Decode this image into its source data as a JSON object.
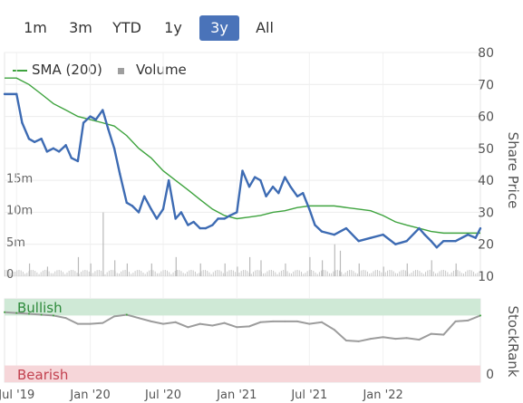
{
  "range_selector": {
    "buttons": [
      {
        "label": "1m",
        "active": false
      },
      {
        "label": "3m",
        "active": false
      },
      {
        "label": "YTD",
        "active": false
      },
      {
        "label": "1y",
        "active": false
      },
      {
        "label": "3y",
        "active": true
      },
      {
        "label": "All",
        "active": false
      }
    ],
    "active_color": "#4a73b9"
  },
  "legend": {
    "sma_label": "SMA (200)",
    "volume_label": "Volume",
    "sma_color": "#3ea33e",
    "volume_color": "#9e9e9e"
  },
  "chart_data": [
    {
      "type": "line",
      "x_tick_labels": [
        "Jul '19",
        "Jan '20",
        "Jul '20",
        "Jan '21",
        "Jul '21",
        "Jan '22"
      ],
      "x_range": [
        "2019-06",
        "2022-09"
      ],
      "ylabel": "Share Price",
      "ylim": [
        10,
        80
      ],
      "y_tick_labels": [
        "10",
        "20",
        "30",
        "40",
        "50",
        "60",
        "70",
        "80"
      ],
      "volume_tick_labels": [
        "0",
        "5m",
        "10m",
        "15m"
      ],
      "volume_ylim": [
        0,
        15
      ],
      "grid": true,
      "series": [
        {
          "name": "",
          "color": "#3d6bb3",
          "x": [
            "2019-06-01",
            "2019-07-01",
            "2019-07-15",
            "2019-08-01",
            "2019-08-15",
            "2019-09-01",
            "2019-09-15",
            "2019-10-01",
            "2019-10-15",
            "2019-11-01",
            "2019-11-15",
            "2019-12-01",
            "2019-12-15",
            "2020-01-01",
            "2020-01-15",
            "2020-02-01",
            "2020-02-15",
            "2020-03-01",
            "2020-03-15",
            "2020-04-01",
            "2020-04-15",
            "2020-05-01",
            "2020-05-15",
            "2020-06-01",
            "2020-06-15",
            "2020-07-01",
            "2020-07-15",
            "2020-08-01",
            "2020-08-15",
            "2020-09-01",
            "2020-09-15",
            "2020-10-01",
            "2020-10-15",
            "2020-11-01",
            "2020-11-15",
            "2020-12-01",
            "2020-12-15",
            "2021-01-01",
            "2021-01-15",
            "2021-02-01",
            "2021-02-15",
            "2021-03-01",
            "2021-03-15",
            "2021-04-01",
            "2021-04-15",
            "2021-05-01",
            "2021-05-15",
            "2021-06-01",
            "2021-06-15",
            "2021-07-01",
            "2021-07-15",
            "2021-08-01",
            "2021-09-01",
            "2021-10-01",
            "2021-11-01",
            "2021-12-01",
            "2022-01-01",
            "2022-02-01",
            "2022-03-01",
            "2022-04-01",
            "2022-04-15",
            "2022-05-01",
            "2022-05-15",
            "2022-06-01",
            "2022-07-01",
            "2022-08-01",
            "2022-08-20",
            "2022-09-01"
          ],
          "values": [
            67,
            67,
            58,
            53,
            52,
            53,
            49,
            50,
            49,
            51,
            47,
            46,
            58,
            60,
            59,
            62,
            56,
            50,
            42,
            33,
            32,
            30,
            35,
            31,
            28,
            31,
            40,
            28,
            30,
            26,
            27,
            25,
            25,
            26,
            28,
            28,
            29,
            30,
            43,
            38,
            41,
            40,
            35,
            38,
            36,
            41,
            38,
            35,
            36,
            31,
            26,
            24,
            23,
            25,
            21,
            22,
            23,
            20,
            21,
            25,
            23,
            21,
            19,
            21,
            21,
            23,
            22,
            25
          ]
        },
        {
          "name": "SMA (200)",
          "color": "#3ea33e",
          "x": [
            "2019-06-01",
            "2019-07-01",
            "2019-08-01",
            "2019-09-01",
            "2019-10-01",
            "2019-11-01",
            "2019-12-01",
            "2020-01-01",
            "2020-02-01",
            "2020-03-01",
            "2020-04-01",
            "2020-05-01",
            "2020-06-01",
            "2020-07-01",
            "2020-08-01",
            "2020-09-01",
            "2020-10-01",
            "2020-11-01",
            "2020-12-01",
            "2021-01-01",
            "2021-02-01",
            "2021-03-01",
            "2021-04-01",
            "2021-05-01",
            "2021-06-01",
            "2021-07-01",
            "2021-08-01",
            "2021-09-01",
            "2021-10-01",
            "2021-11-01",
            "2021-12-01",
            "2022-01-01",
            "2022-02-01",
            "2022-03-01",
            "2022-04-01",
            "2022-05-01",
            "2022-06-01",
            "2022-07-01",
            "2022-08-01",
            "2022-09-01"
          ],
          "values": [
            72,
            72,
            70,
            67,
            64,
            62,
            60,
            59,
            58,
            57,
            54,
            50,
            47,
            43,
            40,
            37,
            34,
            31,
            29,
            28,
            28.5,
            29,
            30,
            30.5,
            31.5,
            32,
            32,
            32,
            31.5,
            31,
            30.5,
            29,
            27,
            26,
            25,
            24,
            23.5,
            23.5,
            23.5,
            23.5
          ]
        }
      ],
      "volume_peaks_m": [
        {
          "x": "2019-08-01",
          "v": 2
        },
        {
          "x": "2019-09-15",
          "v": 1.5
        },
        {
          "x": "2019-12-01",
          "v": 3
        },
        {
          "x": "2020-01-01",
          "v": 2
        },
        {
          "x": "2020-02-01",
          "v": 10
        },
        {
          "x": "2020-03-01",
          "v": 2.5
        },
        {
          "x": "2020-04-01",
          "v": 2
        },
        {
          "x": "2020-06-01",
          "v": 2
        },
        {
          "x": "2020-08-01",
          "v": 3
        },
        {
          "x": "2020-10-01",
          "v": 2
        },
        {
          "x": "2020-12-01",
          "v": 2
        },
        {
          "x": "2021-01-01",
          "v": 1.5
        },
        {
          "x": "2021-02-01",
          "v": 3
        },
        {
          "x": "2021-03-01",
          "v": 2.5
        },
        {
          "x": "2021-05-01",
          "v": 2
        },
        {
          "x": "2021-07-01",
          "v": 3
        },
        {
          "x": "2021-08-01",
          "v": 2.5
        },
        {
          "x": "2021-09-01",
          "v": 5
        },
        {
          "x": "2021-09-15",
          "v": 4
        },
        {
          "x": "2021-11-01",
          "v": 2
        },
        {
          "x": "2022-01-01",
          "v": 1.5
        },
        {
          "x": "2022-03-01",
          "v": 2
        },
        {
          "x": "2022-05-01",
          "v": 2.5
        },
        {
          "x": "2022-07-01",
          "v": 2
        }
      ]
    },
    {
      "type": "line",
      "ylabel": "StockRank",
      "ylim": [
        0,
        100
      ],
      "y_tick_labels": [
        "0"
      ],
      "bands": [
        {
          "label": "Bullish",
          "color": "#cfe9d6",
          "range": [
            80,
            100
          ]
        },
        {
          "label": "Bearish",
          "color": "#f6d6d9",
          "range": [
            0,
            20
          ]
        }
      ],
      "series": [
        {
          "name": "",
          "color": "#9c9c9c",
          "x": [
            "2019-06-01",
            "2019-07-01",
            "2019-08-01",
            "2019-09-01",
            "2019-10-01",
            "2019-11-01",
            "2019-12-01",
            "2020-01-01",
            "2020-02-01",
            "2020-03-01",
            "2020-04-01",
            "2020-05-01",
            "2020-06-01",
            "2020-07-01",
            "2020-08-01",
            "2020-09-01",
            "2020-10-01",
            "2020-11-01",
            "2020-12-01",
            "2021-01-01",
            "2021-02-01",
            "2021-03-01",
            "2021-04-01",
            "2021-05-01",
            "2021-06-01",
            "2021-07-01",
            "2021-08-01",
            "2021-09-01",
            "2021-10-01",
            "2021-11-01",
            "2021-12-01",
            "2022-01-01",
            "2022-02-01",
            "2022-03-01",
            "2022-04-01",
            "2022-05-01",
            "2022-06-01",
            "2022-07-01",
            "2022-08-01",
            "2022-09-01"
          ],
          "values": [
            84,
            83,
            82,
            81,
            80,
            77,
            70,
            70,
            71,
            79,
            81,
            77,
            73,
            70,
            72,
            66,
            70,
            68,
            71,
            66,
            67,
            72,
            73,
            73,
            73,
            70,
            72,
            63,
            50,
            49,
            52,
            54,
            52,
            53,
            51,
            58,
            57,
            73,
            74,
            80
          ]
        }
      ]
    }
  ]
}
